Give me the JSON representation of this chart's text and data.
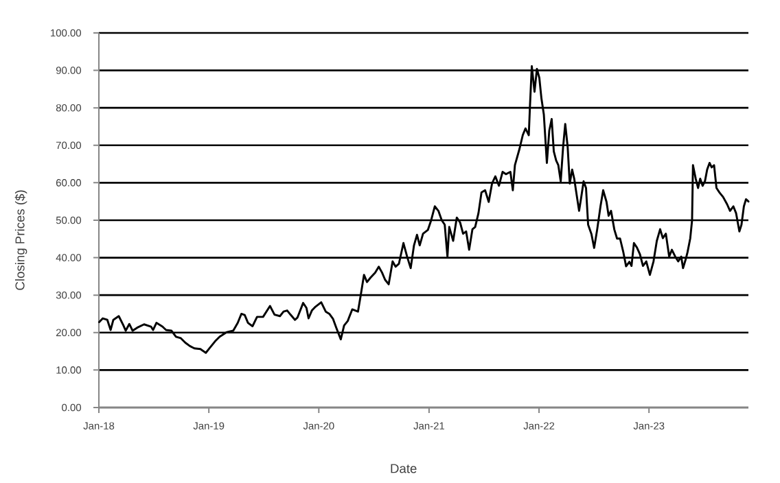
{
  "chart_data": {
    "type": "line",
    "xlabel": "Date",
    "ylabel": "Closing Prices ($)",
    "x": [
      "2018-01-02",
      "2018-01-14",
      "2018-01-29",
      "2018-02-09",
      "2018-02-18",
      "2018-03-08",
      "2018-03-23",
      "2018-03-31",
      "2018-04-12",
      "2018-04-23",
      "2018-05-08",
      "2018-05-31",
      "2018-06-23",
      "2018-06-30",
      "2018-07-11",
      "2018-07-31",
      "2018-08-12",
      "2018-08-30",
      "2018-09-14",
      "2018-09-30",
      "2018-10-15",
      "2018-10-30",
      "2018-11-14",
      "2018-12-04",
      "2018-12-22",
      "2019-01-03",
      "2019-01-22",
      "2019-02-06",
      "2019-03-01",
      "2019-03-23",
      "2019-04-07",
      "2019-04-19",
      "2019-04-30",
      "2019-05-11",
      "2019-05-26",
      "2019-06-10",
      "2019-06-30",
      "2019-07-23",
      "2019-08-07",
      "2019-08-25",
      "2019-09-06",
      "2019-09-18",
      "2019-09-29",
      "2019-10-14",
      "2019-10-22",
      "2019-11-10",
      "2019-11-21",
      "2019-11-28",
      "2019-12-09",
      "2019-12-21",
      "2020-01-09",
      "2020-01-24",
      "2020-02-05",
      "2020-02-17",
      "2020-02-28",
      "2020-03-14",
      "2020-03-25",
      "2020-04-06",
      "2020-04-21",
      "2020-05-10",
      "2020-05-19",
      "2020-05-30",
      "2020-06-09",
      "2020-06-21",
      "2020-07-06",
      "2020-07-18",
      "2020-07-29",
      "2020-08-08",
      "2020-08-20",
      "2020-09-02",
      "2020-09-12",
      "2020-09-23",
      "2020-10-08",
      "2020-10-20",
      "2020-11-01",
      "2020-11-12",
      "2020-11-22",
      "2020-12-01",
      "2020-12-12",
      "2020-12-28",
      "2021-01-08",
      "2021-01-20",
      "2021-02-01",
      "2021-02-12",
      "2021-02-22",
      "2021-03-03",
      "2021-03-09",
      "2021-03-22",
      "2021-04-03",
      "2021-04-14",
      "2021-04-24",
      "2021-05-04",
      "2021-05-14",
      "2021-05-25",
      "2021-06-03",
      "2021-06-14",
      "2021-06-24",
      "2021-07-06",
      "2021-07-18",
      "2021-07-29",
      "2021-08-09",
      "2021-08-21",
      "2021-09-02",
      "2021-09-13",
      "2021-09-28",
      "2021-10-06",
      "2021-10-13",
      "2021-10-28",
      "2021-11-08",
      "2021-11-17",
      "2021-11-28",
      "2021-12-02",
      "2021-12-08",
      "2021-12-17",
      "2021-12-25",
      "2022-01-02",
      "2022-01-09",
      "2022-01-17",
      "2022-01-27",
      "2022-02-04",
      "2022-02-12",
      "2022-02-19",
      "2022-02-27",
      "2022-03-06",
      "2022-03-14",
      "2022-03-22",
      "2022-03-29",
      "2022-04-06",
      "2022-04-13",
      "2022-04-21",
      "2022-04-28",
      "2022-05-06",
      "2022-05-14",
      "2022-05-21",
      "2022-05-29",
      "2022-06-06",
      "2022-06-13",
      "2022-06-24",
      "2022-07-03",
      "2022-07-13",
      "2022-07-24",
      "2022-08-02",
      "2022-08-13",
      "2022-08-20",
      "2022-08-28",
      "2022-09-08",
      "2022-09-17",
      "2022-09-27",
      "2022-10-08",
      "2022-10-17",
      "2022-10-28",
      "2022-11-04",
      "2022-11-12",
      "2022-11-22",
      "2022-12-02",
      "2022-12-12",
      "2022-12-23",
      "2023-01-04",
      "2023-01-16",
      "2023-01-27",
      "2023-02-07",
      "2023-02-16",
      "2023-02-26",
      "2023-03-09",
      "2023-03-18",
      "2023-03-29",
      "2023-04-08",
      "2023-04-18",
      "2023-04-24",
      "2023-05-03",
      "2023-05-09",
      "2023-05-18",
      "2023-05-24",
      "2023-05-27",
      "2023-06-05",
      "2023-06-13",
      "2023-06-20",
      "2023-06-28",
      "2023-07-06",
      "2023-07-13",
      "2023-07-21",
      "2023-07-28",
      "2023-08-05",
      "2023-08-13",
      "2023-08-23",
      "2023-09-04",
      "2023-09-17",
      "2023-09-27",
      "2023-10-08",
      "2023-10-17",
      "2023-10-28",
      "2023-11-04",
      "2023-11-12",
      "2023-11-19",
      "2023-11-27"
    ],
    "series": [
      {
        "color": "#000000",
        "values": [
          22.8,
          23.8,
          23.4,
          20.7,
          23.4,
          24.4,
          22.0,
          20.5,
          22.3,
          20.5,
          21.3,
          22.2,
          21.6,
          20.7,
          22.6,
          21.6,
          20.7,
          20.5,
          18.9,
          18.5,
          17.3,
          16.4,
          15.8,
          15.6,
          14.6,
          15.8,
          17.7,
          18.9,
          20.1,
          20.5,
          22.6,
          25.0,
          24.7,
          22.6,
          21.7,
          24.2,
          24.2,
          27.1,
          24.8,
          24.4,
          25.6,
          25.9,
          24.8,
          23.4,
          24.0,
          27.9,
          26.6,
          23.8,
          25.9,
          26.9,
          28.1,
          25.6,
          25.0,
          23.7,
          21.3,
          18.2,
          21.9,
          23.1,
          26.2,
          25.6,
          29.9,
          35.4,
          33.5,
          34.7,
          36.0,
          37.6,
          36.0,
          34.1,
          32.9,
          39.0,
          37.6,
          38.4,
          43.9,
          40.3,
          37.2,
          43.3,
          46.1,
          43.3,
          46.4,
          47.4,
          50.0,
          53.7,
          52.5,
          50.0,
          48.8,
          40.3,
          48.2,
          44.5,
          50.7,
          49.4,
          46.4,
          47.0,
          42.1,
          47.6,
          48.2,
          51.9,
          57.4,
          58.0,
          54.9,
          59.8,
          61.7,
          59.2,
          62.9,
          62.3,
          62.9,
          58.0,
          64.7,
          69.0,
          72.7,
          74.5,
          72.7,
          80.6,
          91.1,
          84.3,
          90.4,
          88.0,
          82.5,
          78.2,
          65.3,
          73.9,
          77.0,
          68.4,
          65.9,
          64.7,
          60.4,
          69.6,
          75.7,
          69.6,
          59.8,
          63.5,
          61.0,
          56.7,
          52.5,
          56.1,
          60.4,
          58.6,
          48.8,
          46.3,
          42.6,
          47.5,
          53.7,
          58.0,
          54.9,
          51.2,
          52.5,
          47.5,
          45.1,
          45.1,
          41.4,
          37.7,
          38.9,
          37.8,
          43.9,
          42.7,
          40.9,
          37.8,
          39.0,
          35.4,
          39.0,
          44.5,
          47.6,
          45.2,
          46.4,
          40.3,
          42.1,
          40.3,
          39.0,
          40.3,
          37.2,
          39.6,
          41.5,
          45.2,
          50.0,
          64.7,
          61.1,
          58.6,
          61.1,
          59.2,
          60.5,
          63.5,
          65.3,
          64.1,
          64.7,
          58.6,
          57.4,
          56.2,
          54.3,
          52.5,
          53.7,
          51.9,
          47.0,
          48.8,
          53.7,
          55.6,
          55.0
        ]
      }
    ],
    "xlim": [
      "2018-01-01",
      "2023-11-27"
    ],
    "xticks": [
      {
        "value": "2018-01-01",
        "label": "Jan-18"
      },
      {
        "value": "2019-01-01",
        "label": "Jan-19"
      },
      {
        "value": "2020-01-01",
        "label": "Jan-20"
      },
      {
        "value": "2021-01-01",
        "label": "Jan-21"
      },
      {
        "value": "2022-01-01",
        "label": "Jan-22"
      },
      {
        "value": "2023-01-01",
        "label": "Jan-23"
      }
    ],
    "ylim": [
      0,
      100
    ],
    "yticks": [
      {
        "value": 0,
        "label": "0.00"
      },
      {
        "value": 10,
        "label": "10.00"
      },
      {
        "value": 20,
        "label": "20.00"
      },
      {
        "value": 30,
        "label": "30.00"
      },
      {
        "value": 40,
        "label": "40.00"
      },
      {
        "value": 50,
        "label": "50.00"
      },
      {
        "value": 60,
        "label": "60.00"
      },
      {
        "value": 70,
        "label": "70.00"
      },
      {
        "value": 80,
        "label": "80.00"
      },
      {
        "value": 90,
        "label": "90.00"
      },
      {
        "value": 100,
        "label": "100.00"
      }
    ],
    "grid": "y"
  }
}
